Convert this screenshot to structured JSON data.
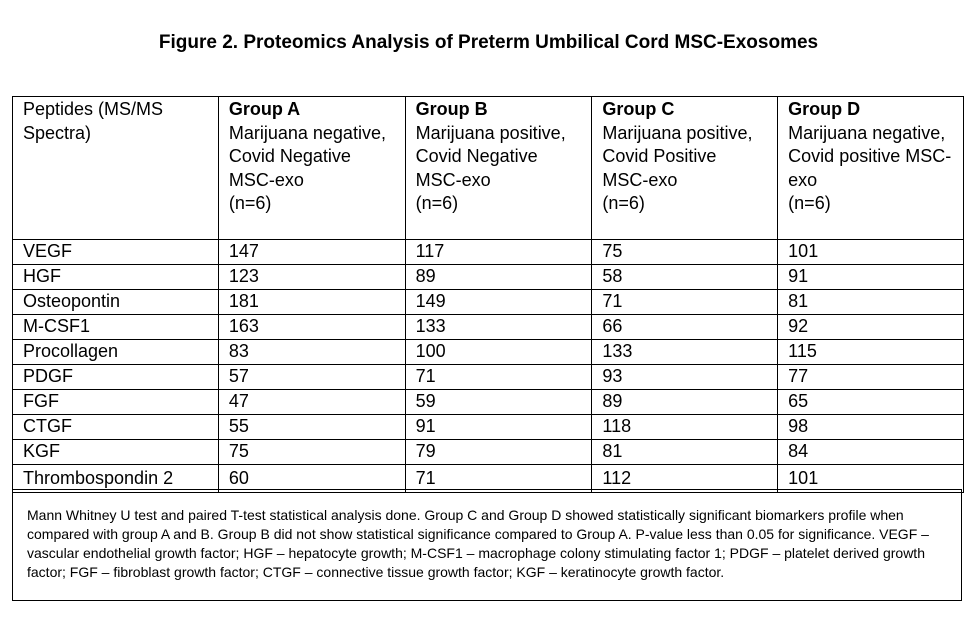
{
  "figure": {
    "title": "Figure 2. Proteomics Analysis of Preterm Umbilical Cord MSC-Exosomes"
  },
  "table": {
    "row_header": "Peptides (MS/MS Spectra)",
    "groups": [
      {
        "name": "Group A",
        "desc": "Marijuana negative, Covid Negative MSC-exo",
        "n": "(n=6)"
      },
      {
        "name": "Group B",
        "desc": "Marijuana positive, Covid Negative MSC-exo",
        "n": "(n=6)"
      },
      {
        "name": "Group C",
        "desc": "Marijuana positive, Covid Positive MSC-exo",
        "n": "(n=6)"
      },
      {
        "name": "Group D",
        "desc": "Marijuana negative, Covid positive MSC-exo",
        "n": "(n=6)"
      }
    ],
    "rows": [
      {
        "peptide": "VEGF",
        "values": [
          "147",
          "117",
          "75",
          "101"
        ]
      },
      {
        "peptide": "HGF",
        "values": [
          "123",
          "89",
          "58",
          "91"
        ]
      },
      {
        "peptide": "Osteopontin",
        "values": [
          "181",
          "149",
          "71",
          "81"
        ]
      },
      {
        "peptide": "M-CSF1",
        "values": [
          "163",
          "133",
          "66",
          "92"
        ]
      },
      {
        "peptide": "Procollagen",
        "values": [
          "83",
          "100",
          "133",
          "115"
        ]
      },
      {
        "peptide": "PDGF",
        "values": [
          "57",
          "71",
          "93",
          "77"
        ]
      },
      {
        "peptide": "FGF",
        "values": [
          "47",
          "59",
          "89",
          "65"
        ]
      },
      {
        "peptide": "CTGF",
        "values": [
          "55",
          "91",
          "118",
          "98"
        ]
      },
      {
        "peptide": "KGF",
        "values": [
          "75",
          "79",
          "81",
          "84"
        ]
      },
      {
        "peptide": "Thrombospondin 2",
        "values": [
          "60",
          "71",
          "112",
          "101"
        ]
      }
    ]
  },
  "notes": {
    "text": "Mann Whitney U test and paired T-test statistical analysis done. Group C and Group D showed statistically significant biomarkers profile when compared with group A and B. Group B did not show statistical significance compared to Group A. P-value less than 0.05 for significance. VEGF – vascular endothelial growth factor; HGF – hepatocyte growth; M-CSF1 – macrophage colony stimulating factor 1; PDGF – platelet derived growth factor; FGF – fibroblast growth factor; CTGF – connective tissue growth factor; KGF – keratinocyte growth factor."
  }
}
